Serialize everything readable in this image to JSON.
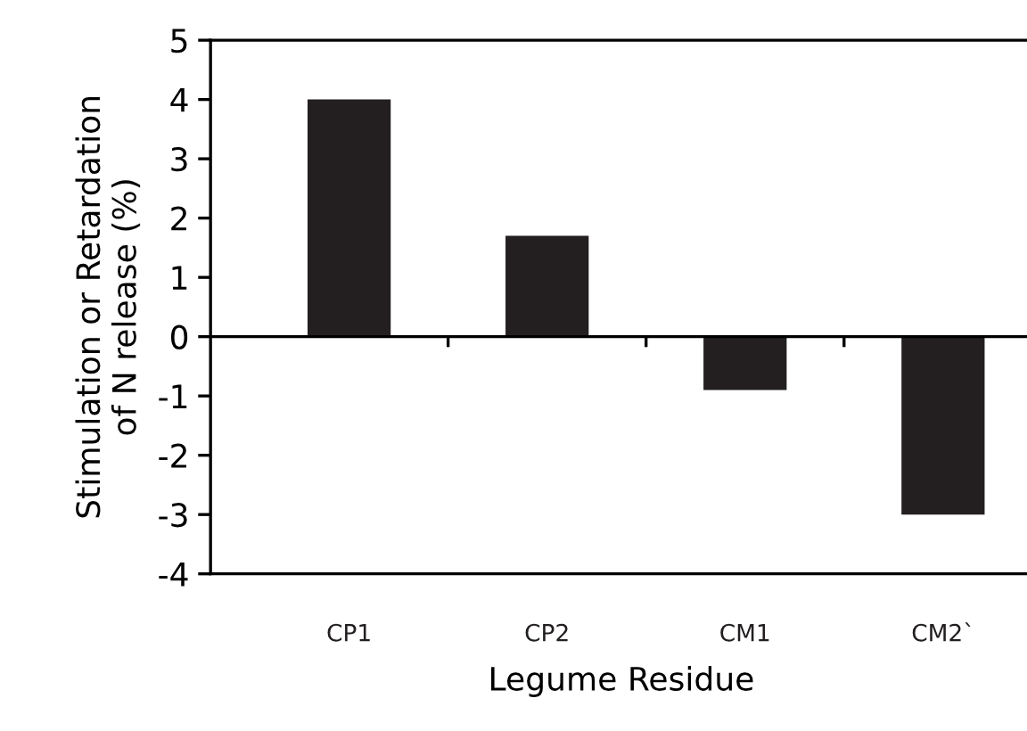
{
  "chart_data": {
    "type": "bar",
    "xlabel": "Legume Residue",
    "ylabel": "Stimulation or Retardation\nof N release (%)",
    "categories": [
      "CP1",
      "CP2",
      "CM1",
      "CM2`"
    ],
    "values": [
      4.0,
      1.7,
      -0.9,
      -3.0
    ],
    "color": "#231f20",
    "ylim": [
      -4,
      5
    ],
    "yticks": [
      -4,
      -3,
      -2,
      -1,
      0,
      1,
      2,
      3,
      4,
      5
    ]
  }
}
